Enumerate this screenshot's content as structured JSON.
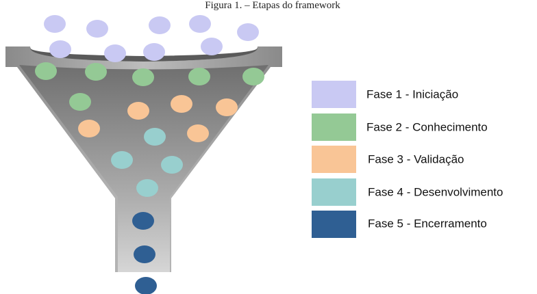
{
  "caption": "Figura 1. – Etapas do framework",
  "legend": [
    {
      "label": "Fase 1 - Iniciação"
    },
    {
      "label": "Fase 2 - Conhecimento"
    },
    {
      "label": "Fase 3 - Validação"
    },
    {
      "label": "Fase 4 - Desenvolvimento"
    },
    {
      "label": "Fase 5 - Encerramento"
    }
  ]
}
